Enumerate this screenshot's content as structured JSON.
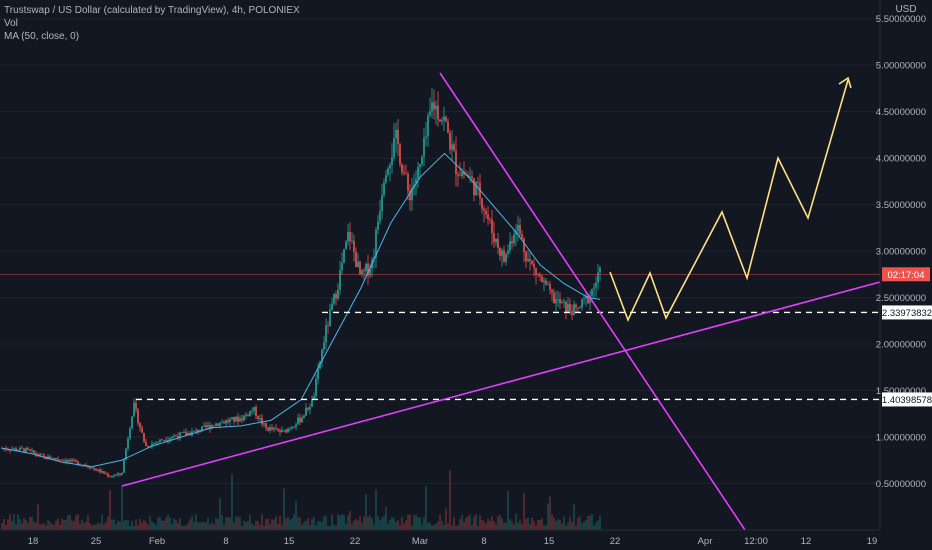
{
  "header": {
    "title": "Trustswap / US Dollar (calculated by TradingView), 4h, POLONIEX",
    "vol_label": "Vol",
    "ma_label": "MA (50, close, 0)"
  },
  "chart_data": {
    "type": "candlestick",
    "y_axis_label": "USD",
    "ylim": [
      0.0,
      5.7
    ],
    "y_ticks": [
      {
        "value": 5.5,
        "label": "5.50000000"
      },
      {
        "value": 5.0,
        "label": "5.00000000"
      },
      {
        "value": 4.5,
        "label": "4.50000000"
      },
      {
        "value": 4.0,
        "label": "4.00000000"
      },
      {
        "value": 3.5,
        "label": "3.50000000"
      },
      {
        "value": 3.0,
        "label": "3.00000000"
      },
      {
        "value": 2.5,
        "label": "2.50000000"
      },
      {
        "value": 2.0,
        "label": "2.00000000"
      },
      {
        "value": 1.5,
        "label": "1.50000000"
      },
      {
        "value": 1.0,
        "label": "1.00000000"
      },
      {
        "value": 0.5,
        "label": "0.50000000"
      }
    ],
    "x_ticks": [
      "18",
      "25",
      "Feb",
      "8",
      "15",
      "22",
      "Mar",
      "8",
      "15",
      "22",
      "Apr",
      "12:00",
      "12",
      "19"
    ],
    "price_path": [
      [
        0.0,
        0.88
      ],
      [
        0.04,
        0.86
      ],
      [
        0.07,
        0.78
      ],
      [
        0.1,
        0.76
      ],
      [
        0.14,
        0.7
      ],
      [
        0.18,
        0.58
      ],
      [
        0.2,
        0.6
      ],
      [
        0.22,
        1.35
      ],
      [
        0.24,
        0.9
      ],
      [
        0.28,
        1.0
      ],
      [
        0.32,
        1.05
      ],
      [
        0.36,
        1.15
      ],
      [
        0.4,
        1.2
      ],
      [
        0.42,
        1.3
      ],
      [
        0.44,
        1.1
      ],
      [
        0.47,
        1.05
      ],
      [
        0.5,
        1.2
      ],
      [
        0.52,
        1.4
      ],
      [
        0.54,
        2.1
      ],
      [
        0.56,
        2.6
      ],
      [
        0.58,
        3.2
      ],
      [
        0.6,
        2.7
      ],
      [
        0.62,
        2.9
      ],
      [
        0.64,
        3.9
      ],
      [
        0.66,
        4.2
      ],
      [
        0.68,
        3.6
      ],
      [
        0.7,
        3.9
      ],
      [
        0.72,
        4.6
      ],
      [
        0.74,
        4.4
      ],
      [
        0.76,
        3.9
      ],
      [
        0.78,
        3.8
      ],
      [
        0.8,
        3.6
      ],
      [
        0.82,
        3.2
      ],
      [
        0.84,
        2.9
      ],
      [
        0.86,
        3.3
      ],
      [
        0.88,
        2.9
      ],
      [
        0.9,
        2.7
      ],
      [
        0.92,
        2.5
      ],
      [
        0.94,
        2.4
      ],
      [
        0.96,
        2.35
      ],
      [
        0.98,
        2.5
      ],
      [
        1.0,
        2.75
      ]
    ],
    "ma_path": [
      [
        0.0,
        0.88
      ],
      [
        0.05,
        0.82
      ],
      [
        0.1,
        0.73
      ],
      [
        0.15,
        0.68
      ],
      [
        0.2,
        0.75
      ],
      [
        0.25,
        0.9
      ],
      [
        0.3,
        1.0
      ],
      [
        0.35,
        1.1
      ],
      [
        0.4,
        1.12
      ],
      [
        0.45,
        1.18
      ],
      [
        0.5,
        1.4
      ],
      [
        0.55,
        2.0
      ],
      [
        0.6,
        2.6
      ],
      [
        0.65,
        3.3
      ],
      [
        0.7,
        3.8
      ],
      [
        0.74,
        4.05
      ],
      [
        0.78,
        3.8
      ],
      [
        0.82,
        3.5
      ],
      [
        0.86,
        3.2
      ],
      [
        0.9,
        2.85
      ],
      [
        0.94,
        2.65
      ],
      [
        0.98,
        2.5
      ],
      [
        1.0,
        2.48
      ]
    ],
    "current_price": {
      "value": 2.75,
      "label": "02:17:04"
    },
    "horizontal_levels": [
      {
        "value": 2.33973832,
        "label": "2.33973832"
      },
      {
        "value": 1.40398578,
        "label": "1.40398578"
      }
    ],
    "annotations": {
      "trendline_color": "#e040fb",
      "projection_color": "#ffe082"
    }
  }
}
